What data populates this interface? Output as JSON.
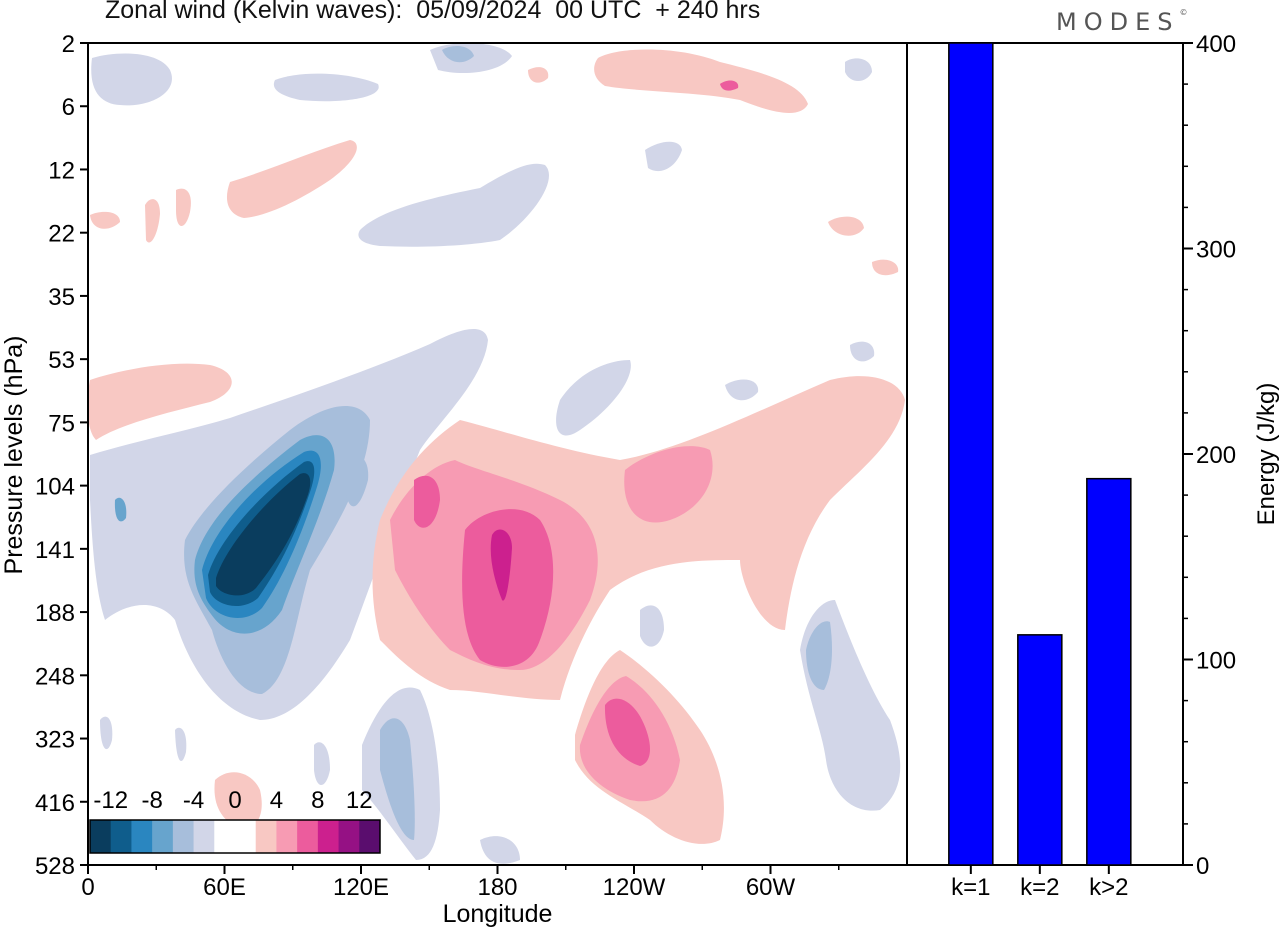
{
  "title": "Zonal wind (Kelvin waves):  05/09/2024  00 UTC  + 240 hrs",
  "brand": "MODES",
  "brand_mark": "©",
  "chart_data": [
    {
      "type": "heatmap",
      "xlabel": "Longitude",
      "ylabel": "Pressure levels (hPa)",
      "x_ticks": [
        "0",
        "60E",
        "120E",
        "180",
        "120W",
        "60W"
      ],
      "x_tick_values": [
        0,
        60,
        120,
        180,
        240,
        300
      ],
      "xlim": [
        0,
        360
      ],
      "y_ticks": [
        "2",
        "6",
        "12",
        "22",
        "35",
        "53",
        "75",
        "104",
        "141",
        "188",
        "248",
        "323",
        "416",
        "528"
      ],
      "y_scale": "pressure levels, top to bottom",
      "colorbar": {
        "labels": [
          "-12",
          "-8",
          "-4",
          "0",
          "4",
          "8",
          "12"
        ],
        "levels": [
          -14,
          -12,
          -10,
          -8,
          -6,
          -4,
          -2,
          0,
          2,
          4,
          6,
          8,
          10,
          12,
          14
        ],
        "colors": [
          "#0a3d5e",
          "#0f5d8c",
          "#2a86c0",
          "#67a4cd",
          "#a7bedb",
          "#d2d6e8",
          "#ffffff",
          "#ffffff",
          "#f8c8c3",
          "#f79bb3",
          "#ec5c9d",
          "#cc208e",
          "#951184",
          "#5a0d6e"
        ]
      },
      "features": [
        {
          "name": "easterly core over Indian Ocean",
          "lon": 72,
          "level": "141",
          "value": -14
        },
        {
          "name": "westerly core near dateline",
          "lon": 183,
          "level": "141",
          "value": 8
        },
        {
          "name": "westerly core east Pacific",
          "lon": 235,
          "level": "323",
          "value": 6
        },
        {
          "name": "easterly patch west Atlantic",
          "lon": 320,
          "level": "248",
          "value": -4
        },
        {
          "name": "westerly band upper levels",
          "lon": 300,
          "level": "6",
          "value": 3
        },
        {
          "name": "easterly band stratosphere",
          "lon": 195,
          "level": "22",
          "value": -3
        }
      ]
    },
    {
      "type": "bar",
      "categories": [
        "k=1",
        "k=2",
        "k>2"
      ],
      "values": [
        400,
        112,
        188
      ],
      "ylabel": "Energy (J/kg)",
      "ylim": [
        0,
        400
      ],
      "y_ticks": [
        0,
        100,
        200,
        300,
        400
      ],
      "color": "#0000ff"
    }
  ]
}
